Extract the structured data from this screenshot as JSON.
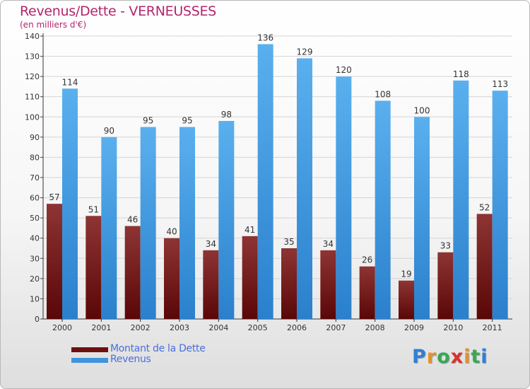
{
  "title": "Revenus/Dette - VERNEUSSES",
  "subtitle": "(en milliers d'€)",
  "colors": {
    "title": "#b4246c",
    "debt": "#7a1c1c",
    "revenue": "#3e95de",
    "legend_text": "#4a6fd8"
  },
  "legend": [
    {
      "label": "Montant de la Dette",
      "color": "#6e0f0f"
    },
    {
      "label": "Revenus",
      "color": "#3e95de"
    }
  ],
  "logo": {
    "letters": [
      "P",
      "r",
      "o",
      "x",
      "i",
      "t",
      "i"
    ],
    "colors": [
      "#2f7fd4",
      "#e2932b",
      "#3aa853",
      "#d9312c",
      "#e2932b",
      "#3aa853",
      "#2f7fd4"
    ]
  },
  "chart_data": {
    "type": "bar",
    "categories": [
      "2000",
      "2001",
      "2002",
      "2003",
      "2004",
      "2005",
      "2006",
      "2007",
      "2008",
      "2009",
      "2010",
      "2011"
    ],
    "series": [
      {
        "name": "Montant de la Dette",
        "values": [
          57,
          51,
          46,
          40,
          34,
          41,
          35,
          34,
          26,
          19,
          33,
          52
        ]
      },
      {
        "name": "Revenus",
        "values": [
          114,
          90,
          95,
          95,
          98,
          136,
          129,
          120,
          108,
          100,
          118,
          113
        ]
      }
    ],
    "ylim": [
      0,
      140
    ],
    "yticks": [
      0,
      10,
      20,
      30,
      40,
      50,
      60,
      70,
      80,
      90,
      100,
      110,
      120,
      130,
      140
    ],
    "grid": true,
    "legend_position": "bottom-left"
  }
}
